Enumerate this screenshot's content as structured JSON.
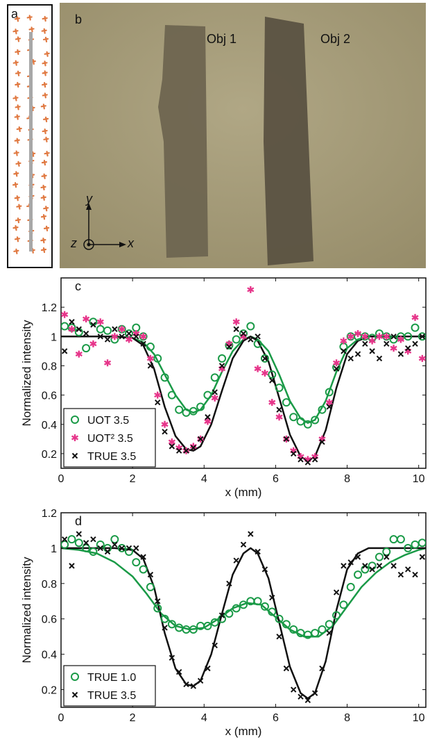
{
  "panels": {
    "a": {
      "label": "a"
    },
    "b": {
      "label": "b",
      "obj1": "Obj 1",
      "obj2": "Obj 2",
      "axis_y": "y",
      "axis_z": "z",
      "axis_x": "x"
    }
  },
  "colors": {
    "green": "#1a9a47",
    "magenta": "#e6358a",
    "black": "#111111",
    "orange": "#e07840",
    "gray": "#a8a8a8"
  },
  "chart_data": [
    {
      "panel": "c",
      "type": "scatter",
      "xlabel": "x (mm)",
      "ylabel": "Normalized intensity",
      "xlim": [
        0,
        10.2
      ],
      "ylim": [
        0.1,
        1.4
      ],
      "xticks": [
        "0",
        "2",
        "4",
        "6",
        "8",
        "10"
      ],
      "yticks": [
        "0.2",
        "0.4",
        "0.6",
        "0.8",
        "1",
        "1.2"
      ],
      "legend": [
        "UOT 3.5",
        "UOT² 3.5",
        "TRUE 3.5"
      ],
      "legend_position": "bottom-left",
      "series": [
        {
          "name": "UOT 3.5",
          "marker": "circle",
          "color": "#1a9a47",
          "x": [
            0.1,
            0.3,
            0.5,
            0.7,
            0.9,
            1.1,
            1.3,
            1.5,
            1.7,
            1.9,
            2.1,
            2.3,
            2.5,
            2.7,
            2.9,
            3.1,
            3.3,
            3.5,
            3.7,
            3.9,
            4.1,
            4.3,
            4.5,
            4.7,
            4.9,
            5.1,
            5.3,
            5.5,
            5.7,
            5.9,
            6.1,
            6.3,
            6.5,
            6.7,
            6.9,
            7.1,
            7.3,
            7.5,
            7.7,
            7.9,
            8.1,
            8.3,
            8.5,
            8.7,
            8.9,
            9.1,
            9.3,
            9.5,
            9.7,
            9.9,
            10.1
          ],
          "y": [
            1.07,
            1.06,
            1.03,
            0.92,
            1.1,
            1.05,
            1.04,
            0.98,
            1.05,
            1.02,
            1.06,
            1.0,
            0.93,
            0.85,
            0.72,
            0.6,
            0.5,
            0.48,
            0.49,
            0.52,
            0.6,
            0.72,
            0.85,
            0.94,
            0.98,
            1.02,
            1.07,
            0.95,
            0.85,
            0.74,
            0.65,
            0.55,
            0.45,
            0.42,
            0.4,
            0.43,
            0.5,
            0.62,
            0.79,
            0.93,
            1.0,
            1.0,
            1.0,
            0.99,
            1.02,
            1.0,
            0.98,
            1.0,
            1.0,
            1.06,
            1.0
          ]
        },
        {
          "name": "UOT² 3.5",
          "marker": "asterisk",
          "color": "#e6358a",
          "x": [
            0.1,
            0.3,
            0.5,
            0.7,
            0.9,
            1.1,
            1.3,
            1.5,
            1.7,
            1.9,
            2.1,
            2.3,
            2.5,
            2.7,
            2.9,
            3.1,
            3.3,
            3.5,
            3.7,
            3.9,
            4.1,
            4.3,
            4.5,
            4.7,
            4.9,
            5.1,
            5.3,
            5.5,
            5.7,
            5.9,
            6.1,
            6.3,
            6.5,
            6.7,
            6.9,
            7.1,
            7.3,
            7.5,
            7.7,
            7.9,
            8.1,
            8.3,
            8.5,
            8.7,
            8.9,
            9.1,
            9.3,
            9.5,
            9.7,
            9.9,
            10.1
          ],
          "y": [
            1.15,
            1.05,
            0.88,
            1.12,
            0.95,
            1.1,
            0.82,
            1.0,
            1.05,
            0.98,
            1.02,
            1.0,
            0.85,
            0.6,
            0.4,
            0.28,
            0.24,
            0.22,
            0.25,
            0.3,
            0.42,
            0.58,
            0.78,
            0.95,
            1.1,
            1.0,
            1.32,
            0.78,
            0.75,
            0.55,
            0.45,
            0.3,
            0.22,
            0.18,
            0.16,
            0.18,
            0.3,
            0.55,
            0.82,
            0.97,
            1.0,
            1.02,
            1.0,
            0.97,
            1.0,
            1.0,
            0.92,
            0.98,
            0.9,
            1.13,
            0.85
          ]
        },
        {
          "name": "TRUE 3.5",
          "marker": "x",
          "color": "#111111",
          "x": [
            0.1,
            0.3,
            0.5,
            0.7,
            0.9,
            1.1,
            1.3,
            1.5,
            1.7,
            1.9,
            2.1,
            2.3,
            2.5,
            2.7,
            2.9,
            3.1,
            3.3,
            3.5,
            3.7,
            3.9,
            4.1,
            4.3,
            4.5,
            4.7,
            4.9,
            5.1,
            5.3,
            5.5,
            5.7,
            5.9,
            6.1,
            6.3,
            6.5,
            6.7,
            6.9,
            7.1,
            7.3,
            7.5,
            7.7,
            7.9,
            8.1,
            8.3,
            8.5,
            8.7,
            8.9,
            9.1,
            9.3,
            9.5,
            9.7,
            9.9,
            10.1
          ],
          "y": [
            0.9,
            1.1,
            1.05,
            1.02,
            1.08,
            1.0,
            0.98,
            1.05,
            1.0,
            1.02,
            1.0,
            0.95,
            0.8,
            0.55,
            0.35,
            0.25,
            0.22,
            0.22,
            0.24,
            0.3,
            0.45,
            0.62,
            0.8,
            0.93,
            1.05,
            1.02,
            0.98,
            1.0,
            0.85,
            0.7,
            0.5,
            0.3,
            0.2,
            0.16,
            0.14,
            0.16,
            0.28,
            0.52,
            0.78,
            0.9,
            0.85,
            0.88,
            0.95,
            0.9,
            0.85,
            0.95,
            1.0,
            0.88,
            0.92,
            0.95,
            1.0
          ]
        },
        {
          "name": "UOT 3.5 fit",
          "marker": "line",
          "color": "#1a9a47",
          "x": [
            0,
            0.5,
            1,
            1.5,
            2,
            2.3,
            2.6,
            2.9,
            3.2,
            3.5,
            3.7,
            3.9,
            4.2,
            4.5,
            4.8,
            5.1,
            5.3,
            5.5,
            5.8,
            6.1,
            6.4,
            6.7,
            6.9,
            7.1,
            7.4,
            7.7,
            8,
            8.3,
            8.6,
            9,
            9.5,
            10,
            10.2
          ],
          "y": [
            1.0,
            1.0,
            1.0,
            1.0,
            0.99,
            0.96,
            0.88,
            0.74,
            0.6,
            0.5,
            0.48,
            0.5,
            0.6,
            0.76,
            0.9,
            0.98,
            1.0,
            0.98,
            0.9,
            0.74,
            0.56,
            0.44,
            0.41,
            0.43,
            0.56,
            0.76,
            0.92,
            0.98,
            1.0,
            1.0,
            1.0,
            1.0,
            1.0
          ]
        },
        {
          "name": "TRUE 3.5 fit",
          "marker": "line",
          "color": "#111111",
          "x": [
            0,
            0.5,
            1,
            1.5,
            2,
            2.3,
            2.6,
            2.9,
            3.2,
            3.5,
            3.7,
            3.9,
            4.2,
            4.5,
            4.8,
            5.1,
            5.3,
            5.5,
            5.8,
            6.1,
            6.4,
            6.7,
            6.9,
            7.1,
            7.4,
            7.7,
            8,
            8.3,
            8.6,
            9,
            9.5,
            10,
            10.2
          ],
          "y": [
            1.0,
            1.0,
            1.0,
            1.0,
            0.99,
            0.94,
            0.78,
            0.52,
            0.32,
            0.23,
            0.22,
            0.25,
            0.4,
            0.63,
            0.85,
            0.97,
            1.0,
            0.97,
            0.83,
            0.58,
            0.33,
            0.18,
            0.15,
            0.18,
            0.36,
            0.65,
            0.88,
            0.97,
            1.0,
            1.0,
            1.0,
            1.0,
            1.0
          ]
        }
      ]
    },
    {
      "panel": "d",
      "type": "scatter",
      "xlabel": "x (mm)",
      "ylabel": "Normalized intensity",
      "xlim": [
        0,
        10.2
      ],
      "ylim": [
        0.1,
        1.2
      ],
      "xticks": [
        "0",
        "2",
        "4",
        "6",
        "8",
        "10"
      ],
      "yticks": [
        "0.2",
        "0.4",
        "0.6",
        "0.8",
        "1",
        "1.2"
      ],
      "legend": [
        "TRUE 1.0",
        "TRUE 3.5"
      ],
      "legend_position": "bottom-left",
      "series": [
        {
          "name": "TRUE 1.0",
          "marker": "circle",
          "color": "#1a9a47",
          "x": [
            0.1,
            0.3,
            0.5,
            0.7,
            0.9,
            1.1,
            1.3,
            1.5,
            1.7,
            1.9,
            2.1,
            2.3,
            2.5,
            2.7,
            2.9,
            3.1,
            3.3,
            3.5,
            3.7,
            3.9,
            4.1,
            4.3,
            4.5,
            4.7,
            4.9,
            5.1,
            5.3,
            5.5,
            5.7,
            5.9,
            6.1,
            6.3,
            6.5,
            6.7,
            6.9,
            7.1,
            7.3,
            7.5,
            7.7,
            7.9,
            8.1,
            8.3,
            8.5,
            8.7,
            8.9,
            9.1,
            9.3,
            9.5,
            9.7,
            9.9,
            10.1
          ],
          "y": [
            1.02,
            1.05,
            1.03,
            1.0,
            0.98,
            1.02,
            1.0,
            1.05,
            1.0,
            0.98,
            0.92,
            0.88,
            0.78,
            0.66,
            0.6,
            0.57,
            0.55,
            0.54,
            0.54,
            0.56,
            0.56,
            0.58,
            0.6,
            0.63,
            0.66,
            0.68,
            0.7,
            0.7,
            0.67,
            0.64,
            0.6,
            0.57,
            0.54,
            0.52,
            0.51,
            0.52,
            0.54,
            0.57,
            0.62,
            0.68,
            0.78,
            0.85,
            0.88,
            0.9,
            0.95,
            0.98,
            1.05,
            1.05,
            1.0,
            1.02,
            1.03
          ]
        },
        {
          "name": "TRUE 3.5",
          "marker": "x",
          "color": "#111111",
          "x": [
            0.1,
            0.3,
            0.5,
            0.7,
            0.9,
            1.1,
            1.3,
            1.5,
            1.7,
            1.9,
            2.1,
            2.3,
            2.5,
            2.7,
            2.9,
            3.1,
            3.3,
            3.5,
            3.7,
            3.9,
            4.1,
            4.3,
            4.5,
            4.7,
            4.9,
            5.1,
            5.3,
            5.5,
            5.7,
            5.9,
            6.1,
            6.3,
            6.5,
            6.7,
            6.9,
            7.1,
            7.3,
            7.5,
            7.7,
            7.9,
            8.1,
            8.3,
            8.5,
            8.7,
            8.9,
            9.1,
            9.3,
            9.5,
            9.7,
            9.9,
            10.1
          ],
          "y": [
            1.05,
            0.9,
            1.08,
            1.03,
            1.05,
            1.0,
            0.98,
            1.02,
            1.0,
            1.0,
            1.0,
            0.95,
            0.85,
            0.7,
            0.55,
            0.38,
            0.3,
            0.23,
            0.22,
            0.25,
            0.32,
            0.45,
            0.62,
            0.8,
            0.93,
            1.02,
            1.08,
            0.98,
            0.88,
            0.72,
            0.5,
            0.32,
            0.2,
            0.16,
            0.14,
            0.18,
            0.32,
            0.52,
            0.75,
            0.9,
            0.92,
            0.95,
            0.9,
            0.88,
            0.9,
            0.95,
            0.9,
            0.85,
            0.88,
            0.85,
            0.95
          ]
        },
        {
          "name": "TRUE 1.0 fit",
          "marker": "line",
          "color": "#1a9a47",
          "x": [
            0,
            0.5,
            1,
            1.5,
            2,
            2.4,
            2.8,
            3.2,
            3.6,
            4,
            4.4,
            4.8,
            5.2,
            5.6,
            6,
            6.4,
            6.8,
            7.2,
            7.6,
            8,
            8.4,
            8.8,
            9.2,
            9.6,
            10,
            10.2
          ],
          "y": [
            1.0,
            0.99,
            0.97,
            0.92,
            0.84,
            0.74,
            0.63,
            0.56,
            0.54,
            0.55,
            0.6,
            0.66,
            0.69,
            0.68,
            0.61,
            0.54,
            0.5,
            0.5,
            0.56,
            0.67,
            0.78,
            0.86,
            0.92,
            0.96,
            0.99,
            1.0
          ]
        },
        {
          "name": "TRUE 3.5 fit",
          "marker": "line",
          "color": "#111111",
          "x": [
            0,
            0.5,
            1,
            1.5,
            2,
            2.3,
            2.6,
            2.9,
            3.2,
            3.5,
            3.7,
            3.9,
            4.2,
            4.5,
            4.8,
            5.1,
            5.3,
            5.5,
            5.8,
            6.1,
            6.4,
            6.7,
            6.9,
            7.1,
            7.4,
            7.7,
            8,
            8.3,
            8.6,
            9,
            9.5,
            10,
            10.2
          ],
          "y": [
            1.0,
            1.0,
            1.0,
            1.0,
            0.99,
            0.94,
            0.78,
            0.52,
            0.32,
            0.23,
            0.22,
            0.25,
            0.4,
            0.63,
            0.85,
            0.97,
            1.0,
            0.97,
            0.83,
            0.58,
            0.33,
            0.18,
            0.15,
            0.18,
            0.36,
            0.65,
            0.88,
            0.97,
            1.0,
            1.0,
            1.0,
            1.0,
            1.0
          ]
        }
      ]
    }
  ]
}
